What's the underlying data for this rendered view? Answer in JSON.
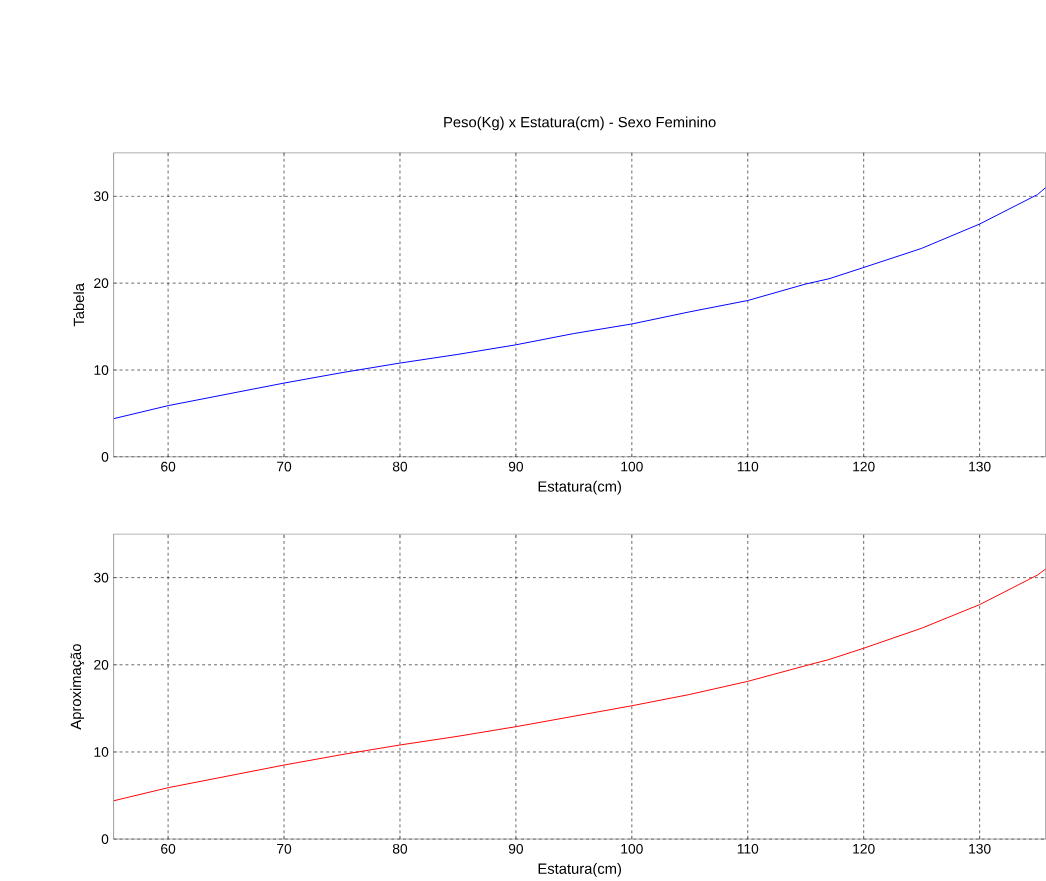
{
  "chart_data": [
    {
      "type": "line",
      "title": "Peso(Kg) x Estatura(cm) - Sexo Feminino",
      "xlabel": "Estatura(cm)",
      "ylabel": "Tabela",
      "x": [
        55.3,
        60,
        65,
        70,
        75,
        80,
        85,
        90,
        95,
        100,
        105,
        110,
        115,
        117,
        120,
        125,
        130,
        135,
        135.7
      ],
      "series": [
        {
          "color": "#0000ff",
          "values": [
            4.4,
            5.9,
            7.2,
            8.5,
            9.7,
            10.8,
            11.8,
            12.9,
            14.2,
            15.3,
            16.7,
            18.0,
            19.9,
            20.5,
            21.8,
            24.0,
            26.8,
            30.2,
            31.0
          ]
        }
      ],
      "xlim": [
        55.3,
        135.7
      ],
      "ylim": [
        0,
        35
      ],
      "xticks": [
        60,
        70,
        80,
        90,
        100,
        110,
        120,
        130
      ],
      "yticks": [
        0,
        10,
        20,
        30
      ],
      "grid": true
    },
    {
      "type": "line",
      "xlabel": "Estatura(cm)",
      "ylabel": "Aproximação",
      "x": [
        55.3,
        60,
        65,
        70,
        75,
        80,
        85,
        90,
        95,
        100,
        105,
        110,
        115,
        117,
        120,
        125,
        130,
        135,
        135.7
      ],
      "series": [
        {
          "color": "#ff0000",
          "values": [
            4.4,
            5.9,
            7.2,
            8.5,
            9.7,
            10.8,
            11.8,
            12.9,
            14.1,
            15.3,
            16.6,
            18.1,
            19.9,
            20.6,
            21.9,
            24.2,
            26.9,
            30.3,
            31.0
          ]
        }
      ],
      "xlim": [
        55.3,
        135.7
      ],
      "ylim": [
        0,
        35
      ],
      "xticks": [
        60,
        70,
        80,
        90,
        100,
        110,
        120,
        130
      ],
      "yticks": [
        0,
        10,
        20,
        30
      ],
      "grid": true
    }
  ]
}
